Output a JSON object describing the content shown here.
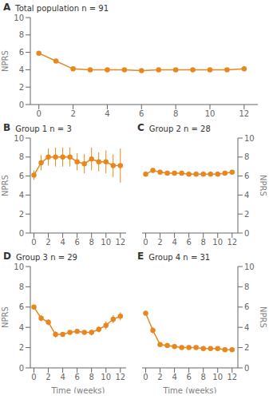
{
  "chart_data": [
    {
      "type": "line",
      "title": "Total population n = 91",
      "annotations": [
        "A"
      ],
      "ylabel": "NPRS",
      "color": "#E8871E",
      "marker": "circle",
      "grid": false,
      "x": [
        0,
        1,
        2,
        3,
        4,
        5,
        6,
        7,
        8,
        9,
        10,
        11,
        12
      ],
      "values": [
        5.9,
        5.0,
        4.1,
        4.0,
        4.0,
        4.0,
        3.9,
        4.0,
        4.0,
        4.0,
        4.0,
        4.0,
        4.1
      ],
      "errors": [
        0.1,
        0.1,
        0.1,
        0.1,
        0.1,
        0.1,
        0.1,
        0.1,
        0.1,
        0.1,
        0.1,
        0.1,
        0.1
      ],
      "xlim": [
        -0.5,
        12.8
      ],
      "xticks": [
        0,
        2,
        4,
        6,
        8,
        10,
        12
      ],
      "ylim": [
        0,
        10
      ],
      "yticks": [
        0,
        2,
        4,
        6,
        8,
        10
      ]
    },
    {
      "type": "line",
      "title": "Group 1 n = 3",
      "annotations": [
        "B"
      ],
      "ylabel": "NPRS",
      "color": "#E8871E",
      "marker": "circle",
      "grid": false,
      "x": [
        0,
        1,
        2,
        3,
        4,
        5,
        6,
        7,
        8,
        9,
        10,
        11,
        12
      ],
      "values": [
        6.1,
        7.4,
        8.0,
        8.0,
        8.0,
        8.0,
        7.5,
        7.3,
        7.8,
        7.5,
        7.5,
        7.1,
        7.1
      ],
      "errors": [
        0.5,
        0.8,
        0.9,
        1.0,
        1.0,
        1.0,
        0.9,
        1.0,
        1.2,
        1.0,
        1.2,
        1.2,
        1.8
      ],
      "xlim": [
        -0.5,
        12.8
      ],
      "xticks": [
        0,
        2,
        4,
        6,
        8,
        10,
        12
      ],
      "ylim": [
        0,
        10
      ],
      "yticks": [
        0,
        2,
        4,
        6,
        8,
        10
      ]
    },
    {
      "type": "line",
      "title": "Group 2 n = 28",
      "annotations": [
        "C"
      ],
      "ylabel": "NPRS",
      "color": "#E8871E",
      "marker": "circle",
      "grid": false,
      "x": [
        0,
        1,
        2,
        3,
        4,
        5,
        6,
        7,
        8,
        9,
        10,
        11,
        12
      ],
      "values": [
        6.2,
        6.6,
        6.4,
        6.3,
        6.3,
        6.3,
        6.2,
        6.2,
        6.2,
        6.2,
        6.2,
        6.3,
        6.4
      ],
      "errors": [
        0.1,
        0.1,
        0.1,
        0.1,
        0.1,
        0.1,
        0.1,
        0.1,
        0.1,
        0.1,
        0.1,
        0.1,
        0.1
      ],
      "xlim": [
        -0.5,
        12.8
      ],
      "xticks": [
        0,
        2,
        4,
        6,
        8,
        10,
        12
      ],
      "ylim": [
        0,
        10
      ],
      "yticks": [
        0,
        2,
        4,
        6,
        8,
        10
      ]
    },
    {
      "type": "line",
      "title": "Group 3 n = 29",
      "annotations": [
        "D"
      ],
      "xlabel": "Time (weeks)",
      "ylabel": "NPRS",
      "color": "#E8871E",
      "marker": "circle",
      "grid": false,
      "x": [
        0,
        1,
        2,
        3,
        4,
        5,
        6,
        7,
        8,
        9,
        10,
        11,
        12
      ],
      "values": [
        6.0,
        4.9,
        4.5,
        3.3,
        3.3,
        3.5,
        3.6,
        3.5,
        3.5,
        3.8,
        4.2,
        4.8,
        5.1
      ],
      "errors": [
        0.2,
        0.3,
        0.3,
        0.3,
        0.2,
        0.2,
        0.2,
        0.2,
        0.3,
        0.3,
        0.4,
        0.4,
        0.4
      ],
      "xlim": [
        -0.5,
        12.8
      ],
      "xticks": [
        0,
        2,
        4,
        6,
        8,
        10,
        12
      ],
      "ylim": [
        0,
        10
      ],
      "yticks": [
        0,
        2,
        4,
        6,
        8,
        10
      ]
    },
    {
      "type": "line",
      "title": "Group 4 n = 31",
      "annotations": [
        "E"
      ],
      "xlabel": "Time (weeks)",
      "ylabel": "NPRS",
      "color": "#E8871E",
      "marker": "circle",
      "grid": false,
      "x": [
        0,
        1,
        2,
        3,
        4,
        5,
        6,
        7,
        8,
        9,
        10,
        11,
        12
      ],
      "values": [
        5.4,
        3.7,
        2.3,
        2.2,
        2.1,
        2.0,
        2.0,
        2.0,
        1.9,
        1.9,
        1.9,
        1.8,
        1.8
      ],
      "errors": [
        0.2,
        0.3,
        0.2,
        0.1,
        0.1,
        0.1,
        0.1,
        0.1,
        0.1,
        0.1,
        0.1,
        0.1,
        0.1
      ],
      "xlim": [
        -0.5,
        12.8
      ],
      "xticks": [
        0,
        2,
        4,
        6,
        8,
        10,
        12
      ],
      "ylim": [
        0,
        10
      ],
      "yticks": [
        0,
        2,
        4,
        6,
        8,
        10
      ]
    }
  ]
}
